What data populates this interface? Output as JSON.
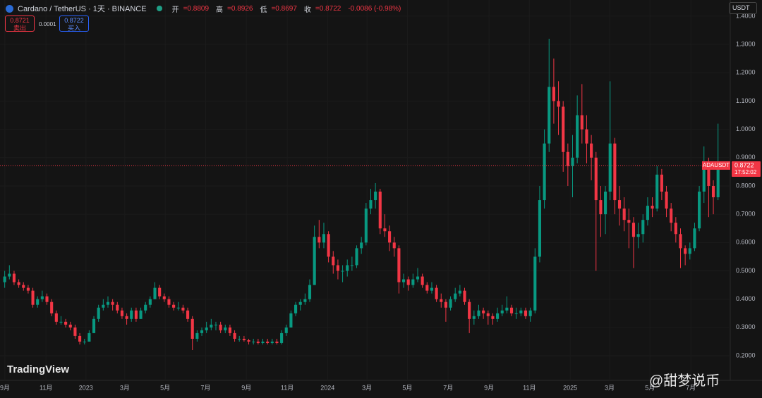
{
  "header": {
    "symbol": "Cardano / TetherUS · 1天 · BINANCE",
    "open_label": "开",
    "open": "=0.8809",
    "high_label": "高",
    "high": "=0.8926",
    "low_label": "低",
    "low": "=0.8697",
    "close_label": "收",
    "close": "=0.8722",
    "change": "-0.0086 (-0.98%)"
  },
  "trade": {
    "sell_price": "0.8721",
    "sell_label": "卖出",
    "spread": "0.0001",
    "buy_price": "0.8722",
    "buy_label": "买入"
  },
  "currency": "USDT",
  "watermark": "TradingView",
  "author": "@甜梦说币",
  "chart_data": {
    "type": "candlestick",
    "up_color": "#089981",
    "down_color": "#f23645",
    "grid": true,
    "ticker": "ADAUSDT",
    "last_price": 0.8722,
    "countdown": "17:52:02",
    "xlim": [
      -1,
      154.6
    ],
    "xticks": [
      {
        "value": 0.05,
        "label": "9月"
      },
      {
        "value": 8.8,
        "label": "11月"
      },
      {
        "value": 17.3,
        "label": "2023"
      },
      {
        "value": 25.6,
        "label": "3月"
      },
      {
        "value": 34.2,
        "label": "5月"
      },
      {
        "value": 42.8,
        "label": "7月"
      },
      {
        "value": 51.5,
        "label": "9月"
      },
      {
        "value": 60.2,
        "label": "11月"
      },
      {
        "value": 68.8,
        "label": "2024"
      },
      {
        "value": 77.2,
        "label": "3月"
      },
      {
        "value": 85.8,
        "label": "5月"
      },
      {
        "value": 94.5,
        "label": "7月"
      },
      {
        "value": 103.2,
        "label": "9月"
      },
      {
        "value": 111.8,
        "label": "11月"
      },
      {
        "value": 120.5,
        "label": "2025"
      },
      {
        "value": 128.9,
        "label": "3月"
      },
      {
        "value": 137.5,
        "label": "5月"
      },
      {
        "value": 146.2,
        "label": "7月"
      }
    ],
    "ylim": [
      0.113,
      1.457
    ],
    "yticks": [
      {
        "value": 0.2,
        "label": "0.2000"
      },
      {
        "value": 0.3,
        "label": "0.3000"
      },
      {
        "value": 0.4,
        "label": "0.4000"
      },
      {
        "value": 0.5,
        "label": "0.5000"
      },
      {
        "value": 0.6,
        "label": "0.6000"
      },
      {
        "value": 0.7,
        "label": "0.7000"
      },
      {
        "value": 0.8,
        "label": "0.8000"
      },
      {
        "value": 0.9,
        "label": "0.9000"
      },
      {
        "value": 1.0,
        "label": "1.0000"
      },
      {
        "value": 1.1,
        "label": "1.1000"
      },
      {
        "value": 1.2,
        "label": "1.2000"
      },
      {
        "value": 1.3,
        "label": "1.3000"
      },
      {
        "value": 1.4,
        "label": "1.4000"
      }
    ],
    "candles": [
      [
        0.46,
        0.5,
        0.44,
        0.48
      ],
      [
        0.48,
        0.52,
        0.47,
        0.49
      ],
      [
        0.49,
        0.5,
        0.45,
        0.46
      ],
      [
        0.46,
        0.47,
        0.44,
        0.45
      ],
      [
        0.45,
        0.46,
        0.43,
        0.44
      ],
      [
        0.44,
        0.45,
        0.42,
        0.43
      ],
      [
        0.43,
        0.44,
        0.37,
        0.38
      ],
      [
        0.38,
        0.41,
        0.37,
        0.4
      ],
      [
        0.4,
        0.43,
        0.39,
        0.41
      ],
      [
        0.41,
        0.42,
        0.38,
        0.39
      ],
      [
        0.39,
        0.4,
        0.34,
        0.35
      ],
      [
        0.35,
        0.36,
        0.31,
        0.32
      ],
      [
        0.32,
        0.34,
        0.31,
        0.32
      ],
      [
        0.32,
        0.33,
        0.3,
        0.31
      ],
      [
        0.31,
        0.32,
        0.29,
        0.3
      ],
      [
        0.3,
        0.31,
        0.26,
        0.27
      ],
      [
        0.27,
        0.28,
        0.24,
        0.25
      ],
      [
        0.25,
        0.26,
        0.24,
        0.25
      ],
      [
        0.25,
        0.29,
        0.25,
        0.28
      ],
      [
        0.28,
        0.34,
        0.28,
        0.33
      ],
      [
        0.33,
        0.38,
        0.32,
        0.37
      ],
      [
        0.37,
        0.4,
        0.36,
        0.38
      ],
      [
        0.38,
        0.41,
        0.37,
        0.39
      ],
      [
        0.39,
        0.4,
        0.36,
        0.38
      ],
      [
        0.38,
        0.39,
        0.35,
        0.36
      ],
      [
        0.36,
        0.37,
        0.33,
        0.34
      ],
      [
        0.34,
        0.35,
        0.31,
        0.33
      ],
      [
        0.33,
        0.37,
        0.32,
        0.36
      ],
      [
        0.36,
        0.37,
        0.32,
        0.33
      ],
      [
        0.33,
        0.37,
        0.33,
        0.36
      ],
      [
        0.36,
        0.39,
        0.35,
        0.38
      ],
      [
        0.38,
        0.41,
        0.37,
        0.4
      ],
      [
        0.4,
        0.46,
        0.4,
        0.44
      ],
      [
        0.44,
        0.45,
        0.4,
        0.41
      ],
      [
        0.41,
        0.42,
        0.39,
        0.4
      ],
      [
        0.4,
        0.41,
        0.37,
        0.38
      ],
      [
        0.38,
        0.39,
        0.36,
        0.37
      ],
      [
        0.37,
        0.39,
        0.36,
        0.37
      ],
      [
        0.37,
        0.38,
        0.35,
        0.36
      ],
      [
        0.36,
        0.37,
        0.32,
        0.33
      ],
      [
        0.33,
        0.34,
        0.22,
        0.26
      ],
      [
        0.26,
        0.29,
        0.25,
        0.28
      ],
      [
        0.28,
        0.3,
        0.27,
        0.29
      ],
      [
        0.29,
        0.32,
        0.28,
        0.3
      ],
      [
        0.3,
        0.33,
        0.29,
        0.31
      ],
      [
        0.31,
        0.32,
        0.29,
        0.31
      ],
      [
        0.31,
        0.32,
        0.28,
        0.29
      ],
      [
        0.29,
        0.31,
        0.28,
        0.3
      ],
      [
        0.3,
        0.31,
        0.27,
        0.28
      ],
      [
        0.28,
        0.29,
        0.25,
        0.26
      ],
      [
        0.26,
        0.27,
        0.25,
        0.26
      ],
      [
        0.26,
        0.27,
        0.25,
        0.255
      ],
      [
        0.255,
        0.26,
        0.24,
        0.25
      ],
      [
        0.25,
        0.26,
        0.24,
        0.25
      ],
      [
        0.25,
        0.26,
        0.24,
        0.245
      ],
      [
        0.245,
        0.26,
        0.24,
        0.25
      ],
      [
        0.25,
        0.26,
        0.24,
        0.245
      ],
      [
        0.245,
        0.26,
        0.24,
        0.25
      ],
      [
        0.25,
        0.26,
        0.24,
        0.245
      ],
      [
        0.245,
        0.29,
        0.24,
        0.28
      ],
      [
        0.28,
        0.31,
        0.27,
        0.3
      ],
      [
        0.3,
        0.36,
        0.3,
        0.35
      ],
      [
        0.35,
        0.39,
        0.34,
        0.38
      ],
      [
        0.38,
        0.4,
        0.36,
        0.39
      ],
      [
        0.39,
        0.42,
        0.38,
        0.4
      ],
      [
        0.4,
        0.47,
        0.39,
        0.45
      ],
      [
        0.45,
        0.66,
        0.45,
        0.62
      ],
      [
        0.62,
        0.68,
        0.58,
        0.6
      ],
      [
        0.6,
        0.67,
        0.58,
        0.63
      ],
      [
        0.63,
        0.64,
        0.53,
        0.55
      ],
      [
        0.55,
        0.57,
        0.49,
        0.52
      ],
      [
        0.52,
        0.54,
        0.47,
        0.5
      ],
      [
        0.5,
        0.52,
        0.46,
        0.5
      ],
      [
        0.5,
        0.54,
        0.48,
        0.52
      ],
      [
        0.52,
        0.55,
        0.5,
        0.52
      ],
      [
        0.52,
        0.59,
        0.51,
        0.58
      ],
      [
        0.58,
        0.62,
        0.56,
        0.6
      ],
      [
        0.6,
        0.74,
        0.59,
        0.72
      ],
      [
        0.72,
        0.79,
        0.7,
        0.75
      ],
      [
        0.75,
        0.81,
        0.72,
        0.78
      ],
      [
        0.78,
        0.79,
        0.63,
        0.65
      ],
      [
        0.65,
        0.7,
        0.62,
        0.64
      ],
      [
        0.64,
        0.66,
        0.57,
        0.6
      ],
      [
        0.6,
        0.62,
        0.55,
        0.58
      ],
      [
        0.58,
        0.59,
        0.42,
        0.46
      ],
      [
        0.46,
        0.49,
        0.44,
        0.47
      ],
      [
        0.47,
        0.48,
        0.43,
        0.45
      ],
      [
        0.45,
        0.49,
        0.44,
        0.47
      ],
      [
        0.47,
        0.51,
        0.46,
        0.48
      ],
      [
        0.48,
        0.49,
        0.44,
        0.45
      ],
      [
        0.45,
        0.46,
        0.42,
        0.43
      ],
      [
        0.43,
        0.46,
        0.42,
        0.44
      ],
      [
        0.44,
        0.45,
        0.39,
        0.4
      ],
      [
        0.4,
        0.42,
        0.37,
        0.39
      ],
      [
        0.39,
        0.4,
        0.32,
        0.37
      ],
      [
        0.37,
        0.41,
        0.36,
        0.4
      ],
      [
        0.4,
        0.44,
        0.39,
        0.42
      ],
      [
        0.42,
        0.45,
        0.41,
        0.43
      ],
      [
        0.43,
        0.44,
        0.38,
        0.39
      ],
      [
        0.39,
        0.4,
        0.28,
        0.33
      ],
      [
        0.33,
        0.36,
        0.31,
        0.34
      ],
      [
        0.34,
        0.38,
        0.33,
        0.36
      ],
      [
        0.36,
        0.37,
        0.33,
        0.35
      ],
      [
        0.35,
        0.36,
        0.31,
        0.34
      ],
      [
        0.34,
        0.35,
        0.31,
        0.33
      ],
      [
        0.33,
        0.37,
        0.32,
        0.35
      ],
      [
        0.35,
        0.38,
        0.34,
        0.36
      ],
      [
        0.36,
        0.41,
        0.35,
        0.37
      ],
      [
        0.37,
        0.38,
        0.34,
        0.35
      ],
      [
        0.35,
        0.37,
        0.33,
        0.35
      ],
      [
        0.35,
        0.37,
        0.34,
        0.36
      ],
      [
        0.36,
        0.37,
        0.33,
        0.34
      ],
      [
        0.34,
        0.37,
        0.32,
        0.36
      ],
      [
        0.36,
        0.58,
        0.35,
        0.55
      ],
      [
        0.55,
        0.8,
        0.53,
        0.75
      ],
      [
        0.75,
        1.0,
        0.72,
        0.95
      ],
      [
        0.95,
        1.32,
        0.92,
        1.15
      ],
      [
        1.15,
        1.25,
        1.02,
        1.1
      ],
      [
        1.1,
        1.17,
        0.98,
        1.08
      ],
      [
        1.08,
        1.1,
        0.85,
        0.92
      ],
      [
        0.92,
        0.95,
        0.8,
        0.87
      ],
      [
        0.87,
        0.98,
        0.76,
        0.9
      ],
      [
        0.9,
        1.12,
        0.88,
        1.05
      ],
      [
        1.05,
        1.16,
        0.95,
        1.0
      ],
      [
        1.0,
        1.05,
        0.88,
        0.95
      ],
      [
        0.95,
        0.98,
        0.82,
        0.9
      ],
      [
        0.9,
        0.92,
        0.5,
        0.75
      ],
      [
        0.75,
        0.8,
        0.62,
        0.7
      ],
      [
        0.7,
        0.8,
        0.63,
        0.78
      ],
      [
        0.78,
        1.17,
        0.75,
        0.95
      ],
      [
        0.95,
        0.97,
        0.7,
        0.75
      ],
      [
        0.75,
        0.8,
        0.66,
        0.72
      ],
      [
        0.72,
        0.76,
        0.64,
        0.68
      ],
      [
        0.68,
        0.72,
        0.58,
        0.67
      ],
      [
        0.67,
        0.69,
        0.51,
        0.62
      ],
      [
        0.62,
        0.67,
        0.58,
        0.63
      ],
      [
        0.63,
        0.7,
        0.6,
        0.68
      ],
      [
        0.68,
        0.76,
        0.66,
        0.73
      ],
      [
        0.73,
        0.76,
        0.69,
        0.72
      ],
      [
        0.72,
        0.87,
        0.71,
        0.84
      ],
      [
        0.84,
        0.86,
        0.75,
        0.78
      ],
      [
        0.78,
        0.8,
        0.69,
        0.72
      ],
      [
        0.72,
        0.74,
        0.64,
        0.67
      ],
      [
        0.67,
        0.69,
        0.6,
        0.63
      ],
      [
        0.63,
        0.65,
        0.51,
        0.58
      ],
      [
        0.58,
        0.59,
        0.52,
        0.56
      ],
      [
        0.56,
        0.6,
        0.54,
        0.58
      ],
      [
        0.58,
        0.67,
        0.57,
        0.65
      ],
      [
        0.65,
        0.8,
        0.64,
        0.78
      ],
      [
        0.78,
        0.94,
        0.74,
        0.88
      ],
      [
        0.88,
        0.9,
        0.69,
        0.8
      ],
      [
        0.8,
        0.82,
        0.7,
        0.76
      ],
      [
        0.76,
        1.02,
        0.75,
        0.8722
      ]
    ]
  }
}
